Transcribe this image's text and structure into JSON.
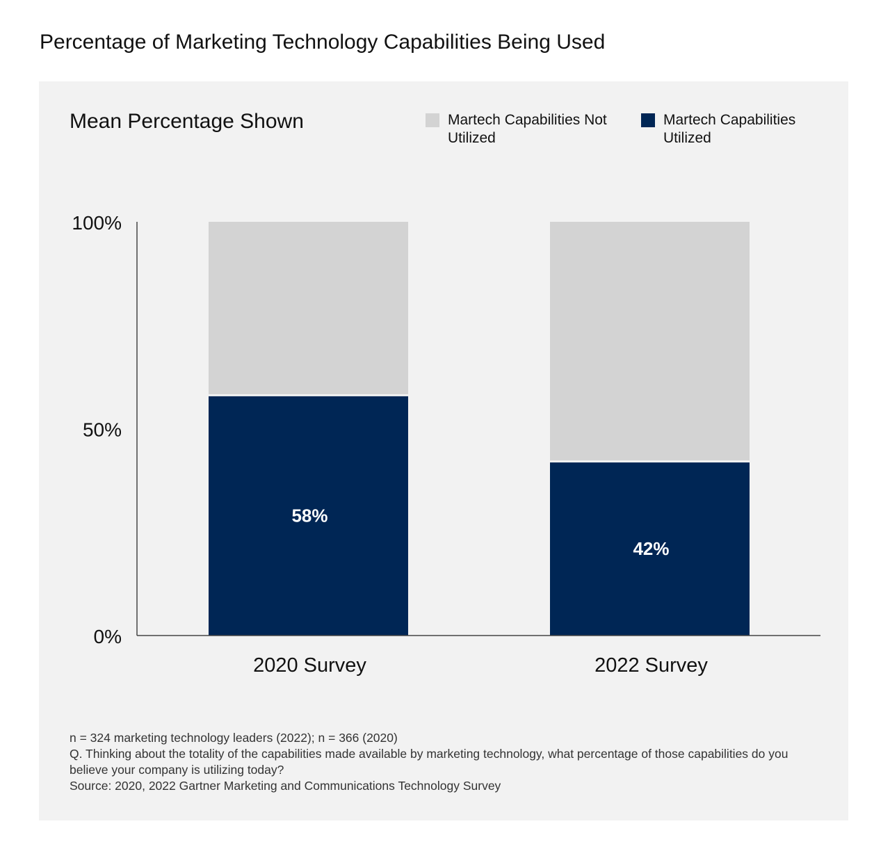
{
  "title": "Percentage of Marketing Technology Capabilities Being Used",
  "chart_data": {
    "type": "bar",
    "stacked": true,
    "subtitle": "Mean Percentage Shown",
    "categories": [
      "2020 Survey",
      "2022 Survey"
    ],
    "series": [
      {
        "name": "Martech Capabilities Utilized",
        "values": [
          58,
          42
        ],
        "color": "#002655",
        "data_labels": [
          "58%",
          "42%"
        ]
      },
      {
        "name": "Martech Capabilities Not Utilized",
        "values": [
          42,
          58
        ],
        "color": "#d3d3d3"
      }
    ],
    "y_ticks": [
      {
        "value": 0,
        "label": "0%"
      },
      {
        "value": 50,
        "label": "50%"
      },
      {
        "value": 100,
        "label": "100%"
      }
    ],
    "ylim": [
      0,
      100
    ],
    "grid": false,
    "legend_position": "top-right"
  },
  "legend": [
    {
      "label": "Martech Capabilities Not Utilized",
      "color": "#d3d3d3"
    },
    {
      "label": "Martech Capabilities Utilized",
      "color": "#002655"
    }
  ],
  "notes": [
    "n = 324 marketing technology leaders (2022); n = 366 (2020)",
    "Q. Thinking about the totality of the capabilities made available by marketing technology, what percentage of those capabilities do you believe your company is utilizing today?",
    "Source: 2020, 2022 Gartner Marketing and Communications Technology Survey"
  ]
}
